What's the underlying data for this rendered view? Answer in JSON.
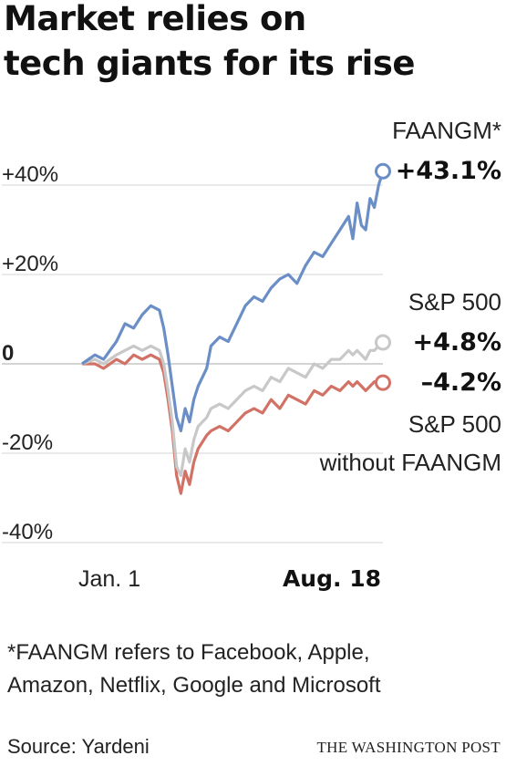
{
  "title_lines": [
    "Market relies on",
    "tech giants for its rise"
  ],
  "chart_data": {
    "type": "line",
    "x_start_label": "Jan. 1",
    "x_end_label": "Aug. 18",
    "ylim": [
      -40,
      50
    ],
    "yticks": [
      {
        "value": 40,
        "label": "+40%"
      },
      {
        "value": 20,
        "label": "+20%"
      },
      {
        "value": 0,
        "label": "0"
      },
      {
        "value": -20,
        "label": "-20%"
      },
      {
        "value": -40,
        "label": "-40%"
      }
    ],
    "grid": true,
    "series": [
      {
        "name": "FAANGM*",
        "end_label": "+43.1%",
        "color": "#6a8ec5",
        "points": [
          [
            0,
            0
          ],
          [
            3,
            2
          ],
          [
            5,
            1
          ],
          [
            8,
            5
          ],
          [
            10,
            9
          ],
          [
            12,
            8
          ],
          [
            14,
            11
          ],
          [
            16,
            13
          ],
          [
            18,
            12
          ],
          [
            19,
            8
          ],
          [
            20,
            2
          ],
          [
            21,
            -5
          ],
          [
            22,
            -12
          ],
          [
            23,
            -15
          ],
          [
            24,
            -10
          ],
          [
            25,
            -13
          ],
          [
            26,
            -8
          ],
          [
            27,
            -5
          ],
          [
            29,
            -1
          ],
          [
            30,
            4
          ],
          [
            32,
            6
          ],
          [
            34,
            5
          ],
          [
            36,
            9
          ],
          [
            38,
            13
          ],
          [
            40,
            15
          ],
          [
            42,
            14
          ],
          [
            44,
            17
          ],
          [
            46,
            19
          ],
          [
            48,
            20
          ],
          [
            50,
            18
          ],
          [
            52,
            22
          ],
          [
            54,
            25
          ],
          [
            56,
            24
          ],
          [
            58,
            27
          ],
          [
            60,
            30
          ],
          [
            62,
            33
          ],
          [
            63,
            28
          ],
          [
            64,
            36
          ],
          [
            65,
            31
          ],
          [
            66,
            30
          ],
          [
            67,
            37
          ],
          [
            68,
            35
          ],
          [
            69,
            40
          ],
          [
            70,
            43.1
          ]
        ]
      },
      {
        "name": "S&P 500",
        "end_label": "+4.8%",
        "color": "#c8c8c8",
        "points": [
          [
            0,
            0
          ],
          [
            3,
            1
          ],
          [
            5,
            0
          ],
          [
            8,
            2
          ],
          [
            10,
            3
          ],
          [
            12,
            4
          ],
          [
            14,
            3
          ],
          [
            16,
            4
          ],
          [
            18,
            3
          ],
          [
            19,
            0
          ],
          [
            20,
            -6
          ],
          [
            21,
            -13
          ],
          [
            22,
            -23
          ],
          [
            23,
            -25
          ],
          [
            24,
            -19
          ],
          [
            25,
            -22
          ],
          [
            26,
            -17
          ],
          [
            27,
            -14
          ],
          [
            29,
            -12
          ],
          [
            30,
            -10
          ],
          [
            32,
            -9
          ],
          [
            34,
            -10
          ],
          [
            36,
            -8
          ],
          [
            38,
            -6
          ],
          [
            40,
            -5
          ],
          [
            42,
            -6
          ],
          [
            44,
            -3
          ],
          [
            46,
            -4
          ],
          [
            48,
            -1
          ],
          [
            50,
            -2
          ],
          [
            52,
            -3
          ],
          [
            54,
            0
          ],
          [
            56,
            -1
          ],
          [
            58,
            1
          ],
          [
            60,
            1
          ],
          [
            62,
            3
          ],
          [
            63,
            2
          ],
          [
            64,
            3
          ],
          [
            65,
            2
          ],
          [
            66,
            1
          ],
          [
            67,
            3
          ],
          [
            68,
            3
          ],
          [
            69,
            4
          ],
          [
            70,
            4.8
          ]
        ]
      },
      {
        "name": "S&P 500\nwithout FAANGM",
        "end_label": "–4.2%",
        "color": "#d27266",
        "points": [
          [
            0,
            0
          ],
          [
            3,
            0
          ],
          [
            5,
            -1
          ],
          [
            8,
            1
          ],
          [
            10,
            0
          ],
          [
            12,
            2
          ],
          [
            14,
            1
          ],
          [
            16,
            2
          ],
          [
            18,
            1
          ],
          [
            19,
            -2
          ],
          [
            20,
            -8
          ],
          [
            21,
            -15
          ],
          [
            22,
            -25
          ],
          [
            23,
            -29
          ],
          [
            24,
            -24
          ],
          [
            25,
            -27
          ],
          [
            26,
            -22
          ],
          [
            27,
            -19
          ],
          [
            29,
            -16
          ],
          [
            30,
            -15
          ],
          [
            32,
            -14
          ],
          [
            34,
            -15
          ],
          [
            36,
            -13
          ],
          [
            38,
            -11
          ],
          [
            40,
            -10
          ],
          [
            42,
            -11
          ],
          [
            44,
            -8
          ],
          [
            46,
            -10
          ],
          [
            48,
            -7
          ],
          [
            50,
            -8
          ],
          [
            52,
            -9
          ],
          [
            54,
            -6
          ],
          [
            56,
            -7
          ],
          [
            58,
            -5
          ],
          [
            60,
            -6
          ],
          [
            62,
            -4
          ],
          [
            63,
            -5
          ],
          [
            64,
            -4
          ],
          [
            65,
            -5
          ],
          [
            66,
            -6
          ],
          [
            67,
            -5
          ],
          [
            68,
            -4
          ],
          [
            69,
            -4
          ],
          [
            70,
            -4.2
          ]
        ]
      }
    ]
  },
  "footnote_lines": [
    "*FAANGM refers to Facebook, Apple,",
    "Amazon, Netflix, Google and Microsoft"
  ],
  "source": "Source: Yardeni",
  "credit": "THE WASHINGTON POST"
}
